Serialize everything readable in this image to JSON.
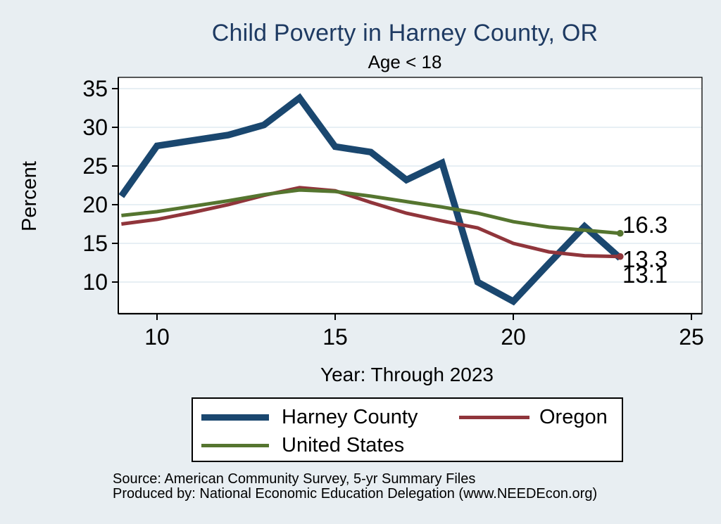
{
  "colors": {
    "background": "#e8eef2",
    "plot_background": "#ffffff",
    "grid": "#dfeaf0",
    "axis": "#000000",
    "title": "#1e3a62",
    "harney": "#1a476f",
    "oregon": "#90353b",
    "united_states": "#55752f"
  },
  "chart_data": {
    "type": "line",
    "title": "Child Poverty in Harney County, OR",
    "subtitle": "Age < 18",
    "xlabel": "Year: Through 2023",
    "ylabel": "Percent",
    "x": [
      9,
      10,
      11,
      12,
      13,
      14,
      15,
      16,
      17,
      18,
      19,
      20,
      21,
      22,
      23
    ],
    "x_ticks": [
      10,
      15,
      20,
      25
    ],
    "y_ticks": [
      10,
      15,
      20,
      25,
      30,
      35
    ],
    "xlim": [
      8.9,
      25.3
    ],
    "ylim": [
      5.9,
      36.5
    ],
    "grid": "horizontal gridlines on",
    "legend_position": "bottom",
    "series": [
      {
        "name": "Harney County",
        "color": "#1a476f",
        "stroke_width": 9.5,
        "values": [
          21.1,
          27.6,
          28.3,
          29.0,
          30.3,
          33.8,
          27.5,
          26.8,
          23.2,
          25.4,
          10.0,
          7.5,
          12.4,
          17.2,
          13.1
        ],
        "end_label": "13.1",
        "end_marker": false
      },
      {
        "name": "Oregon",
        "color": "#90353b",
        "stroke_width": 5,
        "values": [
          17.5,
          18.1,
          19.0,
          20.0,
          21.2,
          22.2,
          21.8,
          20.3,
          18.9,
          17.9,
          17.0,
          15.0,
          13.9,
          13.4,
          13.3
        ],
        "end_label": "13.3",
        "end_marker": true
      },
      {
        "name": "United States",
        "color": "#55752f",
        "stroke_width": 5,
        "values": [
          18.6,
          19.1,
          19.8,
          20.5,
          21.3,
          21.9,
          21.7,
          21.1,
          20.4,
          19.7,
          18.9,
          17.8,
          17.1,
          16.7,
          16.3
        ],
        "end_label": "16.3",
        "end_marker": true
      }
    ]
  },
  "legend": {
    "items": [
      {
        "label": "Harney County",
        "color": "#1a476f"
      },
      {
        "label": "Oregon",
        "color": "#90353b"
      },
      {
        "label": "United States",
        "color": "#55752f"
      }
    ]
  },
  "footer": {
    "source": "Source: American Community Survey, 5-yr Summary Files",
    "produced_by": "Produced by: National Economic Education Delegation (www.NEEDEcon.org)"
  }
}
